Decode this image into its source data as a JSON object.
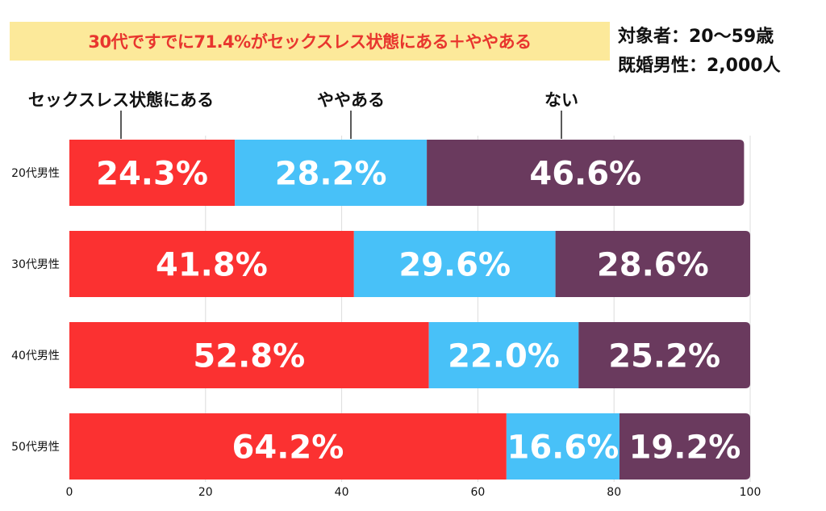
{
  "headline": "30代ですでに71.4%がセックスレス状態にある＋ややある",
  "meta": {
    "line1": "対象者：20〜59歳",
    "line2": "既婚男性：2,000人"
  },
  "chart_data": {
    "type": "bar",
    "orientation": "horizontal",
    "stacked": true,
    "title": "30代ですでに71.4%がセックスレス状態にある＋ややある",
    "categories": [
      "20代男性",
      "30代男性",
      "40代男性",
      "50代男性"
    ],
    "series": [
      {
        "name": "セックスレス状態にある",
        "color": "#fb3131",
        "values": [
          24.3,
          41.8,
          52.8,
          64.2
        ]
      },
      {
        "name": "ややある",
        "color": "#48c1f8",
        "values": [
          28.2,
          29.6,
          22.0,
          16.6
        ]
      },
      {
        "name": "ない",
        "color": "#6a3a5e",
        "values": [
          46.6,
          28.6,
          25.2,
          19.2
        ]
      }
    ],
    "value_format": "%",
    "xlim": [
      0,
      100
    ],
    "xticks": [
      0,
      20,
      40,
      60,
      80,
      100
    ],
    "grid": true,
    "legend": "top"
  }
}
